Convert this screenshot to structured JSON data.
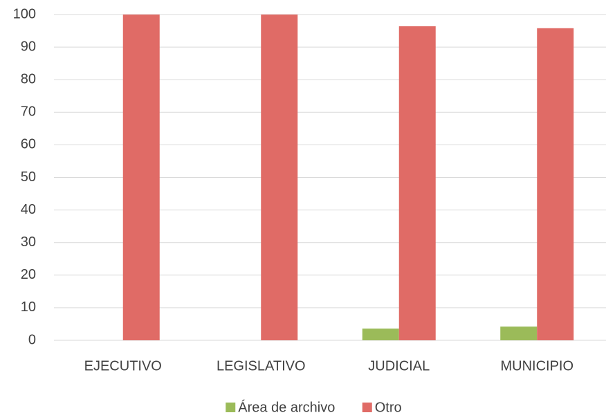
{
  "chart_data": {
    "type": "bar",
    "categories": [
      "EJECUTIVO",
      "LEGISLATIVO",
      "JUDICIAL",
      "MUNICIPIO"
    ],
    "series": [
      {
        "name": "Área de archivo",
        "color": "#9bbb59",
        "values": [
          0,
          0,
          3.6,
          4.2
        ]
      },
      {
        "name": "Otro",
        "color": "#e06b66",
        "values": [
          100,
          100,
          96.4,
          95.8
        ]
      }
    ],
    "ylim": [
      0,
      100
    ],
    "yticks": [
      0,
      10,
      20,
      30,
      40,
      50,
      60,
      70,
      80,
      90,
      100
    ],
    "grid": true,
    "legend": "bottom"
  }
}
